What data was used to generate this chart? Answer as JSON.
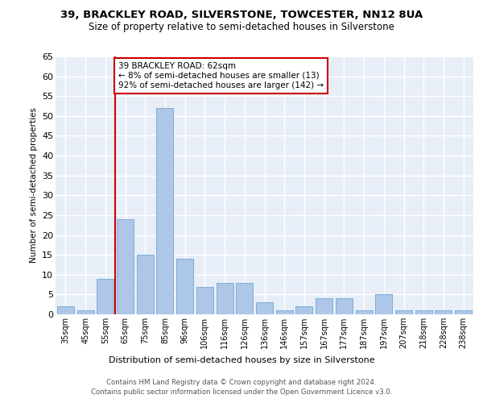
{
  "title1": "39, BRACKLEY ROAD, SILVERSTONE, TOWCESTER, NN12 8UA",
  "title2": "Size of property relative to semi-detached houses in Silverstone",
  "xlabel": "Distribution of semi-detached houses by size in Silverstone",
  "ylabel": "Number of semi-detached properties",
  "categories": [
    "35sqm",
    "45sqm",
    "55sqm",
    "65sqm",
    "75sqm",
    "85sqm",
    "96sqm",
    "106sqm",
    "116sqm",
    "126sqm",
    "136sqm",
    "146sqm",
    "157sqm",
    "167sqm",
    "177sqm",
    "187sqm",
    "197sqm",
    "207sqm",
    "218sqm",
    "228sqm",
    "238sqm"
  ],
  "values": [
    2,
    1,
    9,
    24,
    15,
    52,
    14,
    7,
    8,
    8,
    3,
    1,
    2,
    4,
    4,
    1,
    5,
    1,
    1,
    1,
    1
  ],
  "bar_color": "#aec6e8",
  "bar_edge_color": "#7aafd4",
  "vline_x": 2.5,
  "vline_color": "#cc0000",
  "annotation_text": "39 BRACKLEY ROAD: 62sqm\n← 8% of semi-detached houses are smaller (13)\n92% of semi-detached houses are larger (142) →",
  "annotation_box_color": "#cc0000",
  "ylim": [
    0,
    65
  ],
  "yticks": [
    0,
    5,
    10,
    15,
    20,
    25,
    30,
    35,
    40,
    45,
    50,
    55,
    60,
    65
  ],
  "footnote1": "Contains HM Land Registry data © Crown copyright and database right 2024.",
  "footnote2": "Contains public sector information licensed under the Open Government Licence v3.0.",
  "background_color": "#e8eef8",
  "grid_color": "#ffffff"
}
